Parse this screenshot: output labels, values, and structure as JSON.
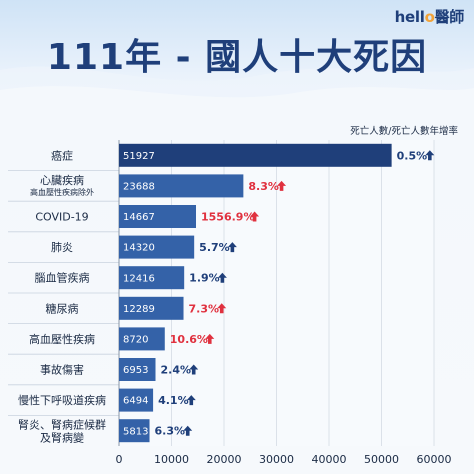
{
  "logo": {
    "text_a": "hell",
    "text_o": "o",
    "text_b": "醫師"
  },
  "title": "111年 - 國人十大死因",
  "subtitle": "死亡人數/死亡人數年增率",
  "colors": {
    "bar": "#3462a8",
    "bar_top": "#1f3f7a",
    "increase_big": "#e0313f",
    "increase": "#1f3f7a"
  },
  "chart_data": {
    "type": "bar",
    "orientation": "horizontal",
    "title": "111年 - 國人十大死因",
    "legend_note": "死亡人數/死亡人數年增率",
    "categories": [
      [
        "癌症"
      ],
      [
        "心臟疾病",
        "高血壓性疾病除外"
      ],
      [
        "COVID-19"
      ],
      [
        "肺炎"
      ],
      [
        "腦血管疾病"
      ],
      [
        "糖尿病"
      ],
      [
        "高血壓性疾病"
      ],
      [
        "事故傷害"
      ],
      [
        "慢性下呼吸道疾病"
      ],
      [
        "腎炎、腎病症候群",
        "及腎病變"
      ]
    ],
    "values": [
      51927,
      23688,
      14667,
      14320,
      12416,
      12289,
      8720,
      6953,
      6494,
      5813
    ],
    "growth": [
      "0.5%",
      "8.3%",
      "1556.9%",
      "5.7%",
      "1.9%",
      "7.3%",
      "10.6%",
      "2.4%",
      "4.1%",
      "6.3%"
    ],
    "growth_highlight": [
      false,
      true,
      true,
      false,
      false,
      true,
      true,
      false,
      false,
      false
    ],
    "xlim": [
      0,
      60000
    ],
    "xticks": [
      "0",
      "10000",
      "20000",
      "30000",
      "40000",
      "50000",
      "60000"
    ],
    "grid": true
  }
}
